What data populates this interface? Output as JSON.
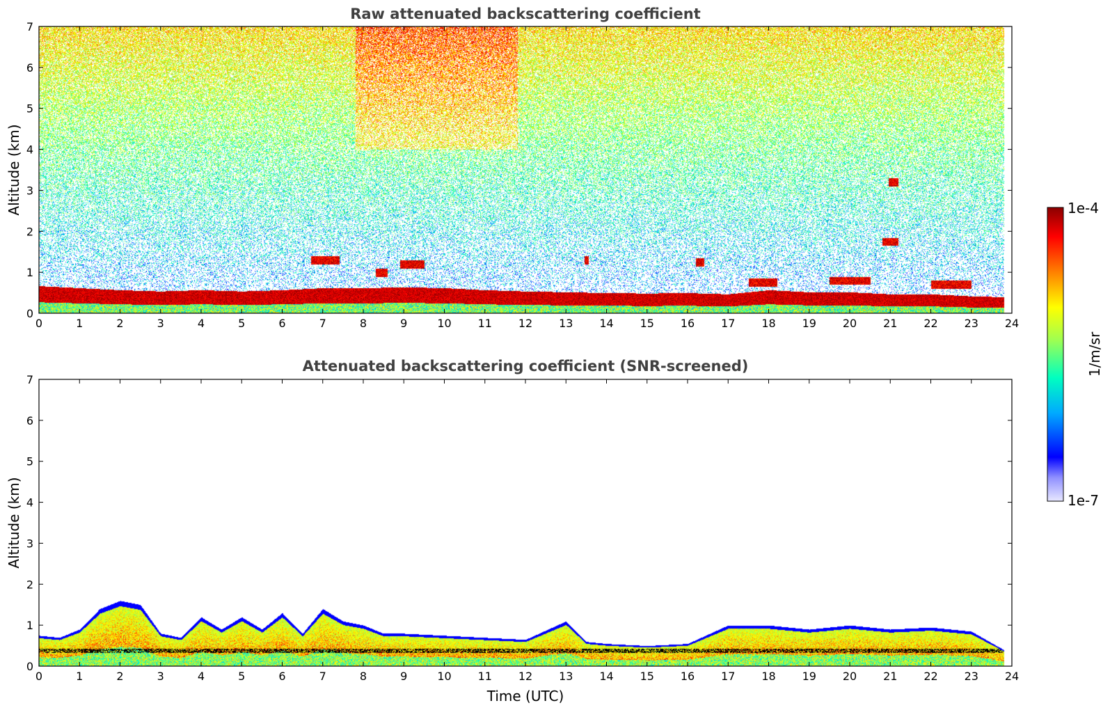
{
  "colors": {
    "colormap": [
      "#e8e8ff",
      "#0000ff",
      "#00aaff",
      "#00ffc0",
      "#a0ff50",
      "#ffff00",
      "#ff8000",
      "#ff0000",
      "#8b0000"
    ],
    "axis": "#000000",
    "title": "#404040"
  },
  "colorbar": {
    "max_label": "1e-4",
    "min_label": "1e-7",
    "unit_label": "1/m/sr",
    "min": 1e-07,
    "max": 0.0001,
    "scale": "log"
  },
  "chart_data": [
    {
      "type": "heatmap",
      "title": "Raw attenuated backscattering coefficient",
      "xlabel": "",
      "ylabel": "Altitude (km)",
      "xlim": [
        0,
        24
      ],
      "ylim": [
        0,
        7
      ],
      "xticks": [
        "0",
        "1",
        "2",
        "3",
        "4",
        "5",
        "6",
        "7",
        "8",
        "9",
        "10",
        "11",
        "12",
        "13",
        "14",
        "15",
        "16",
        "17",
        "18",
        "19",
        "20",
        "21",
        "22",
        "23",
        "24"
      ],
      "yticks": [
        "0",
        "1",
        "2",
        "3",
        "4",
        "5",
        "6",
        "7"
      ],
      "data_end_time": 23.8,
      "screened": false,
      "boundary_layer_top_km": [
        [
          0,
          0.55
        ],
        [
          1,
          0.5
        ],
        [
          2,
          0.45
        ],
        [
          3,
          0.42
        ],
        [
          4,
          0.45
        ],
        [
          5,
          0.42
        ],
        [
          6,
          0.45
        ],
        [
          7,
          0.5
        ],
        [
          8,
          0.5
        ],
        [
          9,
          0.52
        ],
        [
          10,
          0.5
        ],
        [
          11,
          0.45
        ],
        [
          12,
          0.42
        ],
        [
          13,
          0.4
        ],
        [
          14,
          0.38
        ],
        [
          15,
          0.37
        ],
        [
          16,
          0.38
        ],
        [
          17,
          0.35
        ],
        [
          18,
          0.45
        ],
        [
          19,
          0.4
        ],
        [
          20,
          0.4
        ],
        [
          21,
          0.35
        ],
        [
          22,
          0.35
        ],
        [
          23,
          0.3
        ],
        [
          23.8,
          0.28
        ]
      ],
      "cloud_features": [
        {
          "t_start": 6.7,
          "t_end": 7.4,
          "z_km": 1.3
        },
        {
          "t_start": 8.3,
          "t_end": 8.6,
          "z_km": 1.0
        },
        {
          "t_start": 8.9,
          "t_end": 9.5,
          "z_km": 1.2
        },
        {
          "t_start": 13.45,
          "t_end": 13.55,
          "z_km": 1.3
        },
        {
          "t_start": 16.2,
          "t_end": 16.4,
          "z_km": 1.25
        },
        {
          "t_start": 17.5,
          "t_end": 18.2,
          "z_km": 0.75
        },
        {
          "t_start": 19.5,
          "t_end": 20.5,
          "z_km": 0.8
        },
        {
          "t_start": 20.95,
          "t_end": 21.2,
          "z_km": 3.2
        },
        {
          "t_start": 20.8,
          "t_end": 21.2,
          "z_km": 1.75
        },
        {
          "t_start": 22.0,
          "t_end": 23.0,
          "z_km": 0.7
        }
      ]
    },
    {
      "type": "heatmap",
      "title": "Attenuated backscattering coefficient (SNR-screened)",
      "xlabel": "Time (UTC)",
      "ylabel": "Altitude (km)",
      "xlim": [
        0,
        24
      ],
      "ylim": [
        0,
        7
      ],
      "xticks": [
        "0",
        "1",
        "2",
        "3",
        "4",
        "5",
        "6",
        "7",
        "8",
        "9",
        "10",
        "11",
        "12",
        "13",
        "14",
        "15",
        "16",
        "17",
        "18",
        "19",
        "20",
        "21",
        "22",
        "23",
        "24"
      ],
      "yticks": [
        "0",
        "1",
        "2",
        "3",
        "4",
        "5",
        "6",
        "7"
      ],
      "data_end_time": 23.8,
      "screened": true,
      "signal_top_km": [
        [
          0,
          0.75
        ],
        [
          0.5,
          0.7
        ],
        [
          1,
          0.9
        ],
        [
          1.5,
          1.4
        ],
        [
          2,
          1.6
        ],
        [
          2.5,
          1.5
        ],
        [
          3,
          0.8
        ],
        [
          3.5,
          0.7
        ],
        [
          4,
          1.2
        ],
        [
          4.5,
          0.9
        ],
        [
          5,
          1.2
        ],
        [
          5.5,
          0.9
        ],
        [
          6,
          1.3
        ],
        [
          6.5,
          0.8
        ],
        [
          7,
          1.4
        ],
        [
          7.5,
          1.1
        ],
        [
          8,
          1.0
        ],
        [
          8.5,
          0.8
        ],
        [
          9,
          0.8
        ],
        [
          10,
          0.75
        ],
        [
          11,
          0.7
        ],
        [
          12,
          0.65
        ],
        [
          13,
          1.1
        ],
        [
          13.5,
          0.6
        ],
        [
          14,
          0.55
        ],
        [
          15,
          0.5
        ],
        [
          16,
          0.55
        ],
        [
          17,
          1.0
        ],
        [
          18,
          1.0
        ],
        [
          19,
          0.9
        ],
        [
          20,
          1.0
        ],
        [
          21,
          0.9
        ],
        [
          22,
          0.95
        ],
        [
          23,
          0.85
        ],
        [
          23.8,
          0.4
        ]
      ]
    }
  ]
}
